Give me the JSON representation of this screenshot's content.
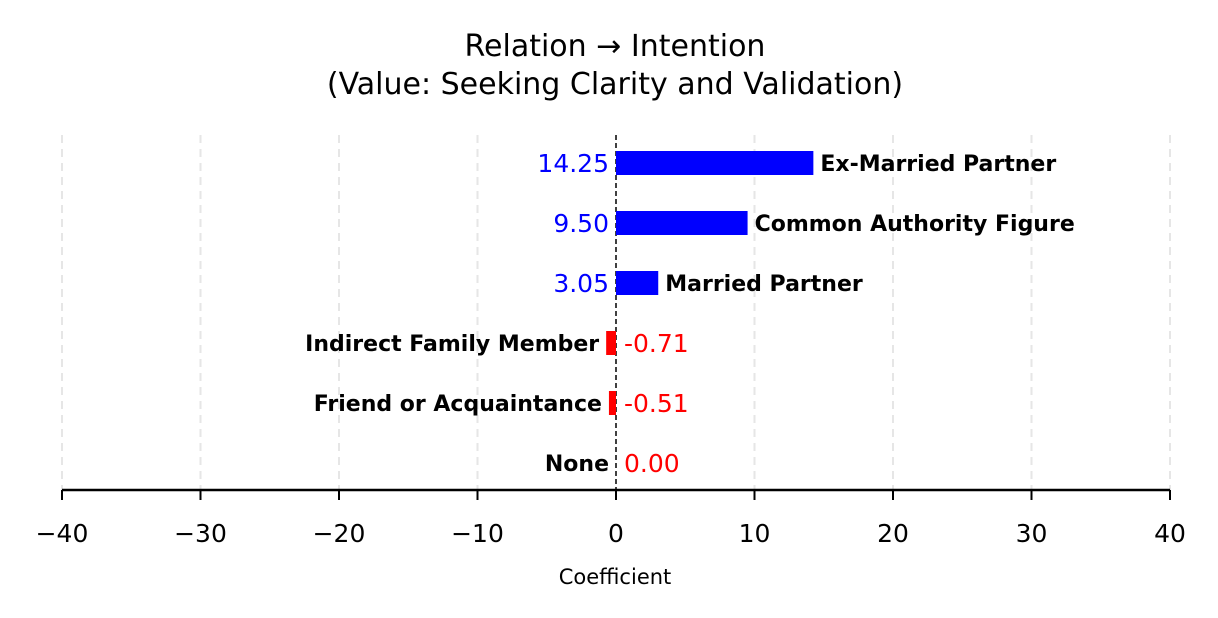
{
  "chart_data": {
    "type": "bar",
    "orientation": "horizontal",
    "title": "Relation → Intention",
    "subtitle": "(Value: Seeking Clarity and Validation)",
    "xlabel": "Coefficient",
    "xlim": [
      -40,
      40
    ],
    "xticks": [
      -40,
      -30,
      -20,
      -10,
      0,
      10,
      20,
      30,
      40
    ],
    "xtick_labels": [
      "−40",
      "−30",
      "−20",
      "−10",
      "0",
      "10",
      "20",
      "30",
      "40"
    ],
    "grid": "vertical dashed",
    "categories": [
      "Ex-Married Partner",
      "Common Authority Figure",
      "Married Partner",
      "Indirect Family Member",
      "Friend or Acquaintance",
      "None"
    ],
    "values": [
      14.25,
      9.5,
      3.05,
      -0.71,
      -0.51,
      0.0
    ],
    "value_labels": [
      "14.25",
      "9.50",
      "3.05",
      "-0.71",
      "-0.51",
      "0.00"
    ],
    "colors": {
      "positive": "#0000ff",
      "non_positive": "#ff0000",
      "grid": "#e6e6e6",
      "axis": "#000000"
    }
  }
}
